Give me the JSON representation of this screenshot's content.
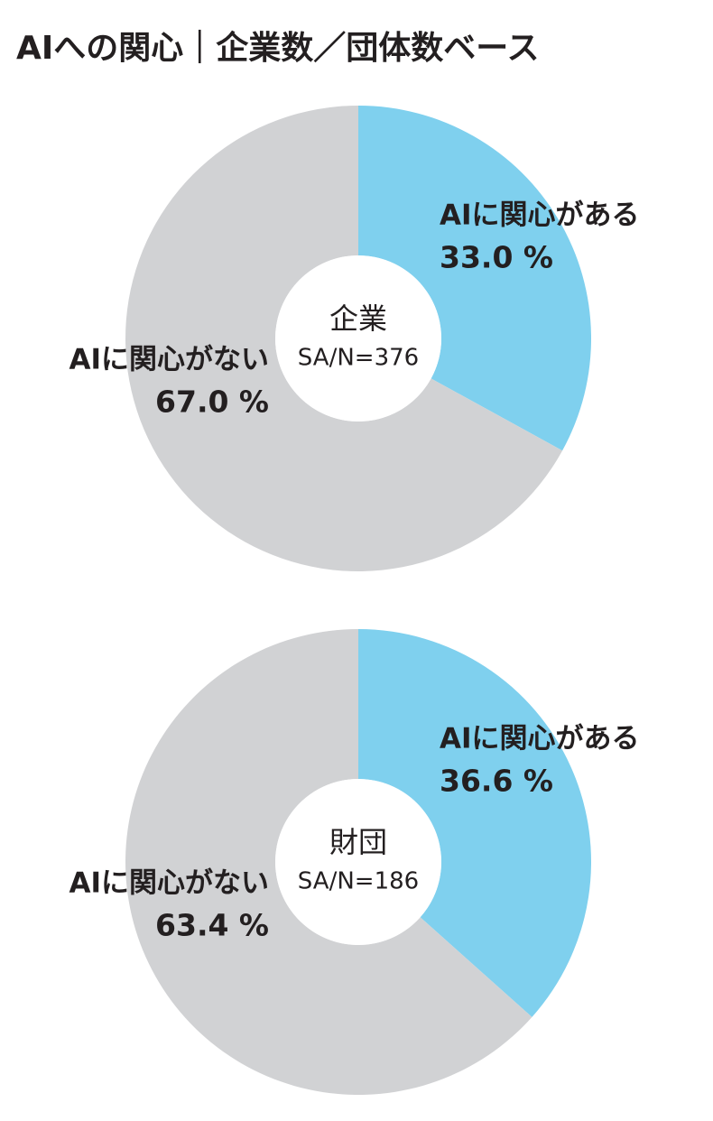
{
  "title": "AIへの関心｜企業数／団体数ベース",
  "chart_data": [
    {
      "type": "donut",
      "center_label": "企業",
      "center_sublabel": "SA/N=376",
      "categories": [
        "AIに関心がある",
        "AIに関心がない"
      ],
      "values": [
        33.0,
        67.0
      ],
      "value_labels": [
        "33.0 %",
        "67.0 %"
      ],
      "colors": [
        "#7fd0ee",
        "#d1d2d4"
      ]
    },
    {
      "type": "donut",
      "center_label": "財団",
      "center_sublabel": "SA/N=186",
      "categories": [
        "AIに関心がある",
        "AIに関心がない"
      ],
      "values": [
        36.6,
        63.4
      ],
      "value_labels": [
        "36.6 %",
        "63.4 %"
      ],
      "colors": [
        "#7fd0ee",
        "#d1d2d4"
      ]
    }
  ]
}
